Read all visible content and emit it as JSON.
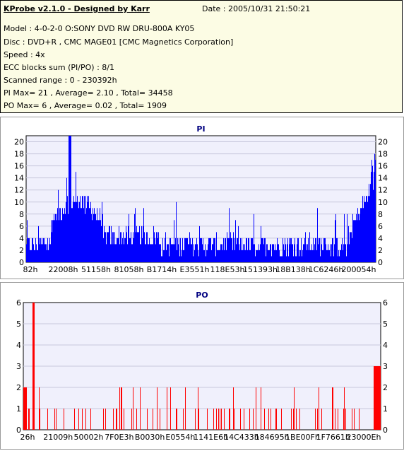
{
  "header": {
    "title": "KProbe v2.1.0 - Designed by Karr",
    "date": "Date : 2005/10/31 21:50:21",
    "lines": [
      "Model : 4-0-2-0 O:SONY    DVD RW DRU-800A  KY05",
      "Disc : DVD+R , CMC MAGE01 [CMC Magnetics Corporation]",
      "Speed : 4x",
      "ECC blocks sum (PI/PO) : 8/1",
      "Scanned range : 0 - 230392h",
      "PI Max= 21 , Average= 2.10 , Total= 34458",
      "PO Max= 6 , Average= 0.02 , Total= 1909"
    ]
  },
  "chart_data": [
    {
      "type": "bar",
      "title": "PI",
      "color": "#0000ff",
      "ylim": [
        0,
        21
      ],
      "yticks": [
        0,
        2,
        4,
        6,
        8,
        10,
        12,
        14,
        16,
        18,
        20
      ],
      "xticks": [
        "82h",
        "22008h",
        "51158h",
        "81058h",
        "B1714h",
        "E3551h",
        "118E53h",
        "151393h",
        "18B138h",
        "1C6246h",
        "200054h"
      ],
      "x_start": 0,
      "x_end": 230392,
      "x_unit": "hex",
      "max": 21,
      "average": 2.1,
      "total": 34458
    },
    {
      "type": "bar",
      "title": "PO",
      "color": "#ff0000",
      "ylim": [
        0,
        6
      ],
      "yticks": [
        0,
        1,
        2,
        3,
        4,
        5,
        6
      ],
      "xticks": [
        "26h",
        "21009h",
        "50002h",
        "7F0E3h",
        "B0030h",
        "E0554h",
        "1141E6h",
        "14C433h",
        "184695h",
        "1BE00Fh",
        "1F7661h",
        "23000Eh"
      ],
      "x_start": 0,
      "x_end": 230392,
      "x_unit": "hex",
      "max": 6,
      "average": 0.02,
      "total": 1909
    }
  ]
}
